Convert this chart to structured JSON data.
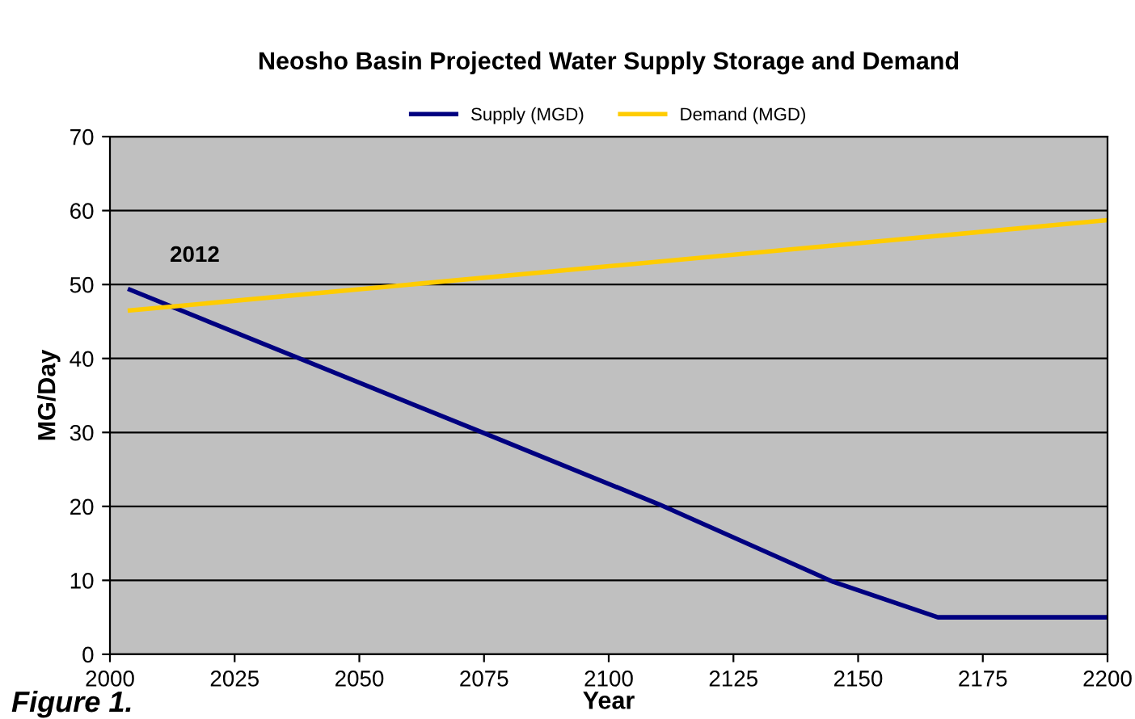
{
  "chart_data": {
    "type": "line",
    "title": "Neosho Basin Projected Water Supply Storage and Demand",
    "xlabel": "Year",
    "ylabel": "MG/Day",
    "series": [
      {
        "name": "Supply (MGD)",
        "color": "#000080",
        "x": [
          2004,
          2075,
          2110,
          2145,
          2166,
          2200
        ],
        "values": [
          49.3,
          29.9,
          20.3,
          9.8,
          5,
          5
        ]
      },
      {
        "name": "Demand (MGD)",
        "color": "#ffcc00",
        "x": [
          2004,
          2200
        ],
        "values": [
          46.5,
          58.7
        ]
      }
    ],
    "xlim": [
      2000,
      2200
    ],
    "xticks": [
      2000,
      2025,
      2050,
      2075,
      2100,
      2125,
      2150,
      2175,
      2200
    ],
    "ylim": [
      0,
      70
    ],
    "yticks": [
      0,
      10,
      20,
      30,
      40,
      50,
      60,
      70
    ],
    "grid": "y",
    "legend": "top",
    "marker": "none",
    "line_style": "solid",
    "annotations": [
      {
        "text": "2012",
        "x": 2012,
        "y": 47
      },
      "Figure 1."
    ]
  }
}
